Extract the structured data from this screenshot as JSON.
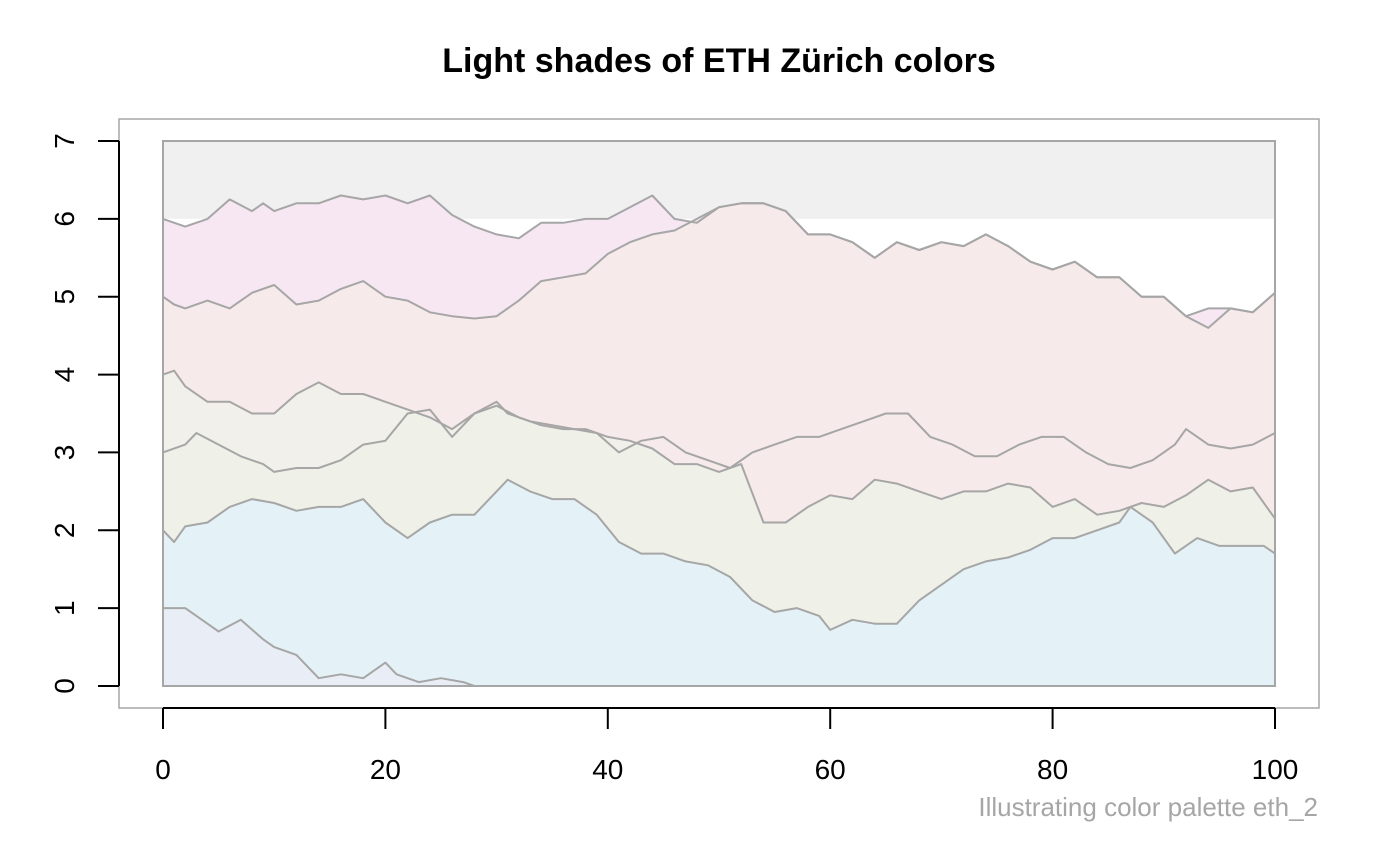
{
  "chart_data": {
    "type": "area",
    "title": "Light shades of ETH Zürich colors",
    "caption": "Illustrating color palette eth_2",
    "xlabel": "",
    "ylabel": "",
    "xlim": [
      0,
      100
    ],
    "ylim": [
      0,
      7
    ],
    "x_ticks": [
      0,
      20,
      40,
      60,
      80,
      100
    ],
    "y_ticks": [
      0,
      1,
      2,
      3,
      4,
      5,
      6,
      7
    ],
    "grid": false,
    "legend": "none",
    "line_color": "#a6a6a6",
    "box_color": "#a6a6a6",
    "background_band": {
      "from": 6,
      "to": 7,
      "color": "#f0f0f0"
    },
    "bands": [
      {
        "color": "#e9edf5"
      },
      {
        "color": "#e4f2f7"
      },
      {
        "color": "#eff0e8"
      },
      {
        "color": "#f1f0ea"
      },
      {
        "color": "#f7eaea"
      },
      {
        "color": "#f6e7f2"
      }
    ],
    "boundaries": [
      {
        "x": [
          0,
          2,
          4,
          5,
          7,
          9,
          10,
          12,
          14,
          16,
          18,
          20,
          21,
          23,
          25,
          27,
          28,
          30,
          32,
          35,
          37,
          40,
          45,
          50,
          55,
          60,
          65,
          70,
          75,
          80,
          85,
          90,
          95,
          100
        ],
        "y": [
          1.0,
          1.0,
          0.8,
          0.7,
          0.85,
          0.6,
          0.5,
          0.4,
          0.1,
          0.15,
          0.1,
          0.3,
          0.15,
          0.05,
          0.1,
          0.05,
          0.0,
          0.0,
          0.0,
          0.0,
          0.0,
          0.0,
          0.0,
          0.0,
          0.0,
          0.0,
          0.0,
          0.0,
          0.0,
          0.0,
          0.0,
          0.0,
          0.0,
          0.0
        ]
      },
      {
        "x": [
          0,
          1,
          2,
          4,
          6,
          8,
          10,
          12,
          14,
          16,
          18,
          20,
          22,
          24,
          26,
          28,
          30,
          31,
          33,
          35,
          37,
          39,
          41,
          43,
          45,
          47,
          49,
          51,
          53,
          55,
          57,
          59,
          60,
          62,
          64,
          66,
          68,
          70,
          72,
          74,
          76,
          78,
          80,
          82,
          84,
          86,
          87,
          89,
          91,
          93,
          95,
          97,
          99,
          100
        ],
        "y": [
          2.0,
          1.85,
          2.05,
          2.1,
          2.3,
          2.4,
          2.35,
          2.25,
          2.3,
          2.3,
          2.4,
          2.1,
          1.9,
          2.1,
          2.2,
          2.2,
          2.5,
          2.65,
          2.5,
          2.4,
          2.4,
          2.2,
          1.85,
          1.7,
          1.7,
          1.6,
          1.55,
          1.4,
          1.1,
          0.95,
          1.0,
          0.9,
          0.72,
          0.85,
          0.8,
          0.8,
          1.1,
          1.3,
          1.5,
          1.6,
          1.65,
          1.75,
          1.9,
          1.9,
          2.0,
          2.1,
          2.3,
          2.1,
          1.7,
          1.9,
          1.8,
          1.8,
          1.8,
          1.7
        ]
      },
      {
        "x": [
          0,
          2,
          3,
          5,
          7,
          9,
          10,
          12,
          14,
          16,
          18,
          20,
          22,
          24,
          26,
          28,
          30,
          31,
          33,
          35,
          37,
          39,
          41,
          43,
          45,
          47,
          49,
          51,
          53,
          55,
          57,
          59,
          61,
          63,
          65,
          67,
          69,
          71,
          73,
          75,
          77,
          79,
          81,
          83,
          85,
          87,
          89,
          91,
          92,
          94,
          96,
          98,
          100
        ],
        "y": [
          3.0,
          3.1,
          3.25,
          3.1,
          2.95,
          2.85,
          2.75,
          2.8,
          2.8,
          2.9,
          3.1,
          3.15,
          3.5,
          3.55,
          3.2,
          3.5,
          3.65,
          3.5,
          3.4,
          3.35,
          3.3,
          3.25,
          3.0,
          3.15,
          3.2,
          3.0,
          2.9,
          2.8,
          3.0,
          3.1,
          3.2,
          3.2,
          3.3,
          3.4,
          3.5,
          3.5,
          3.2,
          3.1,
          2.95,
          2.95,
          3.1,
          3.2,
          3.2,
          3.0,
          2.85,
          2.8,
          2.9,
          3.1,
          3.3,
          3.1,
          3.05,
          3.1,
          3.25
        ]
      },
      {
        "x": [
          0,
          1,
          2,
          4,
          6,
          8,
          10,
          12,
          14,
          16,
          18,
          20,
          22,
          24,
          26,
          28,
          30,
          32,
          34,
          36,
          38,
          40,
          42,
          44,
          46,
          48,
          50,
          52,
          54,
          56,
          58,
          60,
          62,
          64,
          66,
          68,
          70,
          72,
          74,
          76,
          78,
          80,
          82,
          84,
          86,
          88,
          90,
          92,
          94,
          96,
          98,
          100
        ],
        "y": [
          4.0,
          4.05,
          3.85,
          3.65,
          3.65,
          3.5,
          3.5,
          3.75,
          3.9,
          3.75,
          3.75,
          3.65,
          3.55,
          3.45,
          3.3,
          3.5,
          3.6,
          3.45,
          3.35,
          3.3,
          3.3,
          3.2,
          3.15,
          3.05,
          2.85,
          2.85,
          2.75,
          2.85,
          2.1,
          2.1,
          2.3,
          2.45,
          2.4,
          2.65,
          2.6,
          2.5,
          2.4,
          2.5,
          2.5,
          2.6,
          2.55,
          2.3,
          2.4,
          2.2,
          2.25,
          2.35,
          2.3,
          2.45,
          2.65,
          2.5,
          2.55,
          2.15
        ]
      },
      {
        "x": [
          0,
          1,
          2,
          4,
          6,
          8,
          10,
          12,
          14,
          16,
          18,
          20,
          22,
          24,
          26,
          28,
          30,
          32,
          34,
          36,
          38,
          40,
          42,
          44,
          46,
          48,
          50,
          52,
          54,
          56,
          58,
          60,
          62,
          64,
          66,
          68,
          70,
          72,
          74,
          76,
          78,
          80,
          82,
          84,
          86,
          88,
          90,
          92,
          94,
          96,
          98,
          100
        ],
        "y": [
          5.0,
          4.9,
          4.85,
          4.95,
          4.85,
          5.05,
          5.15,
          4.9,
          4.95,
          5.1,
          5.2,
          5.0,
          4.95,
          4.8,
          4.75,
          4.72,
          4.75,
          4.95,
          5.2,
          5.25,
          5.3,
          5.55,
          5.7,
          5.8,
          5.85,
          6.0,
          6.15,
          6.2,
          6.2,
          6.1,
          5.8,
          5.8,
          5.7,
          5.5,
          5.7,
          5.6,
          5.7,
          5.65,
          5.8,
          5.65,
          5.45,
          5.35,
          5.45,
          5.25,
          5.25,
          5.0,
          5.0,
          4.75,
          4.6,
          4.85,
          4.8,
          5.05
        ]
      },
      {
        "x": [
          0,
          2,
          4,
          6,
          8,
          9,
          10,
          12,
          14,
          16,
          18,
          20,
          22,
          24,
          26,
          28,
          30,
          32,
          34,
          36,
          38,
          40,
          42,
          44,
          46,
          48,
          50,
          52,
          54,
          56,
          58,
          60,
          62,
          64,
          66,
          68,
          70,
          72,
          74,
          76,
          78,
          80,
          82,
          84,
          86,
          88,
          90,
          92,
          94,
          96,
          98,
          100
        ],
        "y": [
          6.0,
          5.9,
          6.0,
          6.25,
          6.1,
          6.2,
          6.1,
          6.2,
          6.2,
          6.3,
          6.25,
          6.3,
          6.2,
          6.3,
          6.05,
          5.9,
          5.8,
          5.75,
          5.95,
          5.95,
          6.0,
          6.0,
          6.15,
          6.3,
          6.0,
          5.95,
          6.15,
          6.2,
          6.2,
          6.1,
          5.8,
          5.8,
          5.7,
          5.5,
          5.7,
          5.6,
          5.7,
          5.65,
          5.8,
          5.65,
          5.45,
          5.35,
          5.45,
          5.25,
          5.25,
          5.0,
          5.0,
          4.75,
          4.85,
          4.85,
          4.8,
          5.05
        ]
      }
    ]
  }
}
